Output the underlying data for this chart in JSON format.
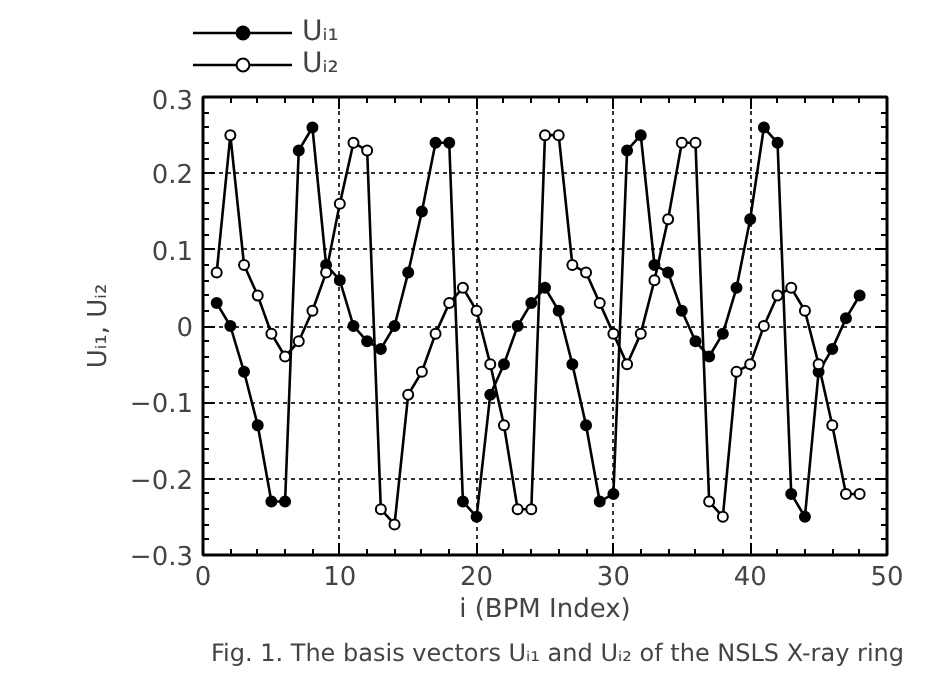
{
  "chart_data": {
    "type": "line",
    "xlabel": "i (BPM Index)",
    "ylabel": "Uᵢ₁, Uᵢ₂",
    "x": [
      1,
      2,
      3,
      4,
      5,
      6,
      7,
      8,
      9,
      10,
      11,
      12,
      13,
      14,
      15,
      16,
      17,
      18,
      19,
      20,
      21,
      22,
      23,
      24,
      25,
      26,
      27,
      28,
      29,
      30,
      31,
      32,
      33,
      34,
      35,
      36,
      37,
      38,
      39,
      40,
      41,
      42,
      43,
      44,
      45,
      46,
      47,
      48
    ],
    "series": [
      {
        "name": "Uᵢ₁",
        "color": "#000000",
        "marker": "circle",
        "values": [
          0.03,
          0.0,
          -0.06,
          -0.13,
          -0.23,
          -0.23,
          0.23,
          0.26,
          0.08,
          0.06,
          0.0,
          -0.02,
          -0.03,
          0.0,
          0.07,
          0.15,
          0.24,
          0.24,
          -0.23,
          -0.25,
          -0.09,
          -0.05,
          0.0,
          0.03,
          0.05,
          0.02,
          -0.05,
          -0.13,
          -0.23,
          -0.22,
          0.23,
          0.25,
          0.08,
          0.07,
          0.02,
          -0.02,
          -0.04,
          -0.01,
          0.05,
          0.14,
          0.26,
          0.24,
          -0.22,
          -0.25,
          -0.06,
          -0.03,
          0.01,
          0.04
        ]
      },
      {
        "name": "Uᵢ₂",
        "color": "#000000",
        "marker": "circle",
        "values": [
          0.07,
          0.25,
          0.08,
          0.04,
          -0.01,
          -0.04,
          -0.02,
          0.02,
          0.07,
          0.16,
          0.24,
          0.23,
          -0.24,
          -0.26,
          -0.09,
          -0.06,
          -0.01,
          0.03,
          0.05,
          0.02,
          -0.05,
          -0.13,
          -0.24,
          -0.24,
          0.25,
          0.25,
          0.08,
          0.07,
          0.03,
          -0.01,
          -0.05,
          -0.01,
          0.06,
          0.14,
          0.24,
          0.24,
          -0.23,
          -0.25,
          -0.06,
          -0.05,
          0.0,
          0.04,
          0.05,
          0.02,
          -0.05,
          -0.13,
          -0.22,
          -0.22
        ]
      }
    ],
    "xlim": [
      0,
      50
    ],
    "ylim": [
      -0.3,
      0.3
    ],
    "xticks": [
      0,
      10,
      20,
      30,
      40,
      50
    ],
    "yticks": [
      -0.3,
      -0.2,
      -0.1,
      0,
      0.1,
      0.2,
      0.3
    ],
    "grid": true,
    "legend": "top left",
    "line_style": "solid",
    "annotations": [
      "Fig. 1. The basis vectors Uᵢ₁ and Uᵢ₂ of the NSLS X-ray ring"
    ]
  }
}
